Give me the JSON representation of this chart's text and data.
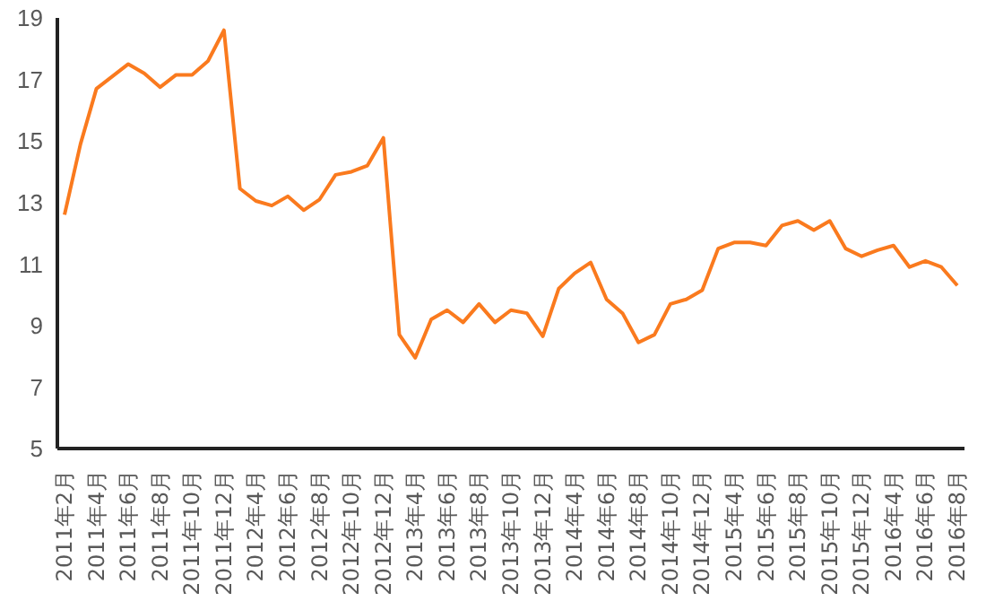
{
  "chart_data": {
    "type": "line",
    "categories": [
      "2011年2月",
      null,
      "2011年4月",
      null,
      "2011年6月",
      null,
      "2011年8月",
      null,
      "2011年10月",
      null,
      "2011年12月",
      null,
      "2012年4月",
      null,
      "2012年6月",
      null,
      "2012年8月",
      null,
      "2012年10月",
      null,
      "2012年12月",
      null,
      "2013年4月",
      null,
      "2013年6月",
      null,
      "2013年8月",
      null,
      "2013年10月",
      null,
      "2013年12月",
      null,
      "2014年4月",
      null,
      "2014年6月",
      null,
      "2014年8月",
      null,
      "2014年10月",
      null,
      "2014年12月",
      null,
      "2015年4月",
      null,
      "2015年6月",
      null,
      "2015年8月",
      null,
      "2015年10月",
      null,
      "2015年12月",
      null,
      "2016年4月",
      null,
      "2016年6月",
      null,
      "2016年8月"
    ],
    "series": [
      {
        "color": "#fa7a1e",
        "values": [
          12.6,
          14.9,
          16.7,
          17.1,
          17.5,
          17.2,
          16.75,
          17.15,
          17.15,
          17.6,
          18.6,
          13.45,
          13.05,
          12.9,
          13.2,
          12.75,
          13.1,
          13.9,
          14.0,
          14.2,
          15.1,
          8.7,
          7.95,
          9.2,
          9.5,
          9.1,
          9.7,
          9.1,
          9.5,
          9.4,
          8.65,
          10.2,
          10.7,
          11.05,
          9.85,
          9.4,
          8.45,
          8.7,
          9.7,
          9.85,
          10.15,
          11.5,
          11.7,
          11.7,
          11.6,
          12.25,
          12.4,
          12.1,
          12.4,
          11.5,
          11.25,
          11.45,
          11.6,
          10.9,
          11.1,
          10.9,
          10.3
        ]
      }
    ],
    "ylim": [
      5,
      19
    ],
    "yticks": [
      5,
      7,
      9,
      11,
      13,
      15,
      17,
      19
    ],
    "grid": false,
    "legend": false,
    "marker": "none",
    "line_style": "solid"
  }
}
